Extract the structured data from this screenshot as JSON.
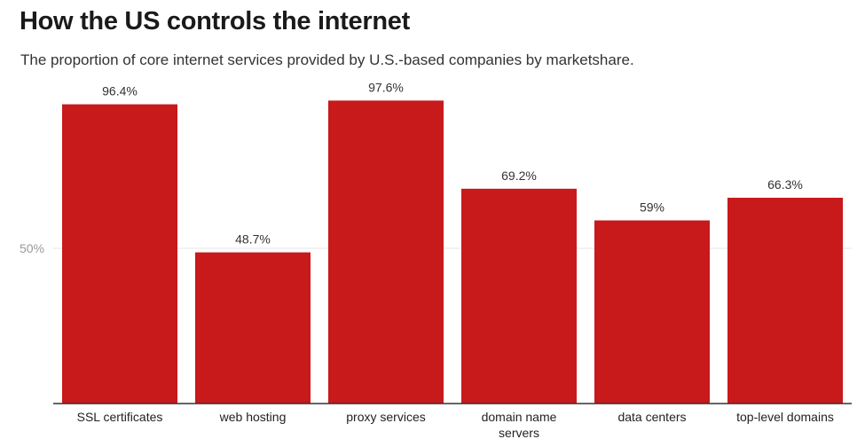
{
  "title": "How the US controls the internet",
  "subtitle": "The proportion of core internet services provided by U.S.-based companies by marketshare.",
  "colors": {
    "bar": "#c8191b",
    "gridline": "#e6e6e6",
    "axis": "#333333"
  },
  "chart_data": {
    "type": "bar",
    "title": "How the US controls the internet",
    "subtitle": "The proportion of core internet services provided by U.S.-based companies by marketshare.",
    "categories": [
      "SSL certificates",
      "web hosting",
      "proxy services",
      "domain name servers",
      "data centers",
      "top-level domains"
    ],
    "category_lines": [
      [
        "SSL certificates"
      ],
      [
        "web hosting"
      ],
      [
        "proxy services"
      ],
      [
        "domain name",
        "servers"
      ],
      [
        "data centers"
      ],
      [
        "top-level domains"
      ]
    ],
    "values": [
      96.4,
      48.7,
      97.6,
      69.2,
      59,
      66.3
    ],
    "data_labels": [
      "96.4%",
      "48.7%",
      "97.6%",
      "69.2%",
      "59%",
      "66.3%"
    ],
    "yticks": [
      50
    ],
    "ytick_labels": [
      "50%"
    ],
    "ylim": [
      0,
      100
    ],
    "grid": true,
    "legend": "none"
  }
}
